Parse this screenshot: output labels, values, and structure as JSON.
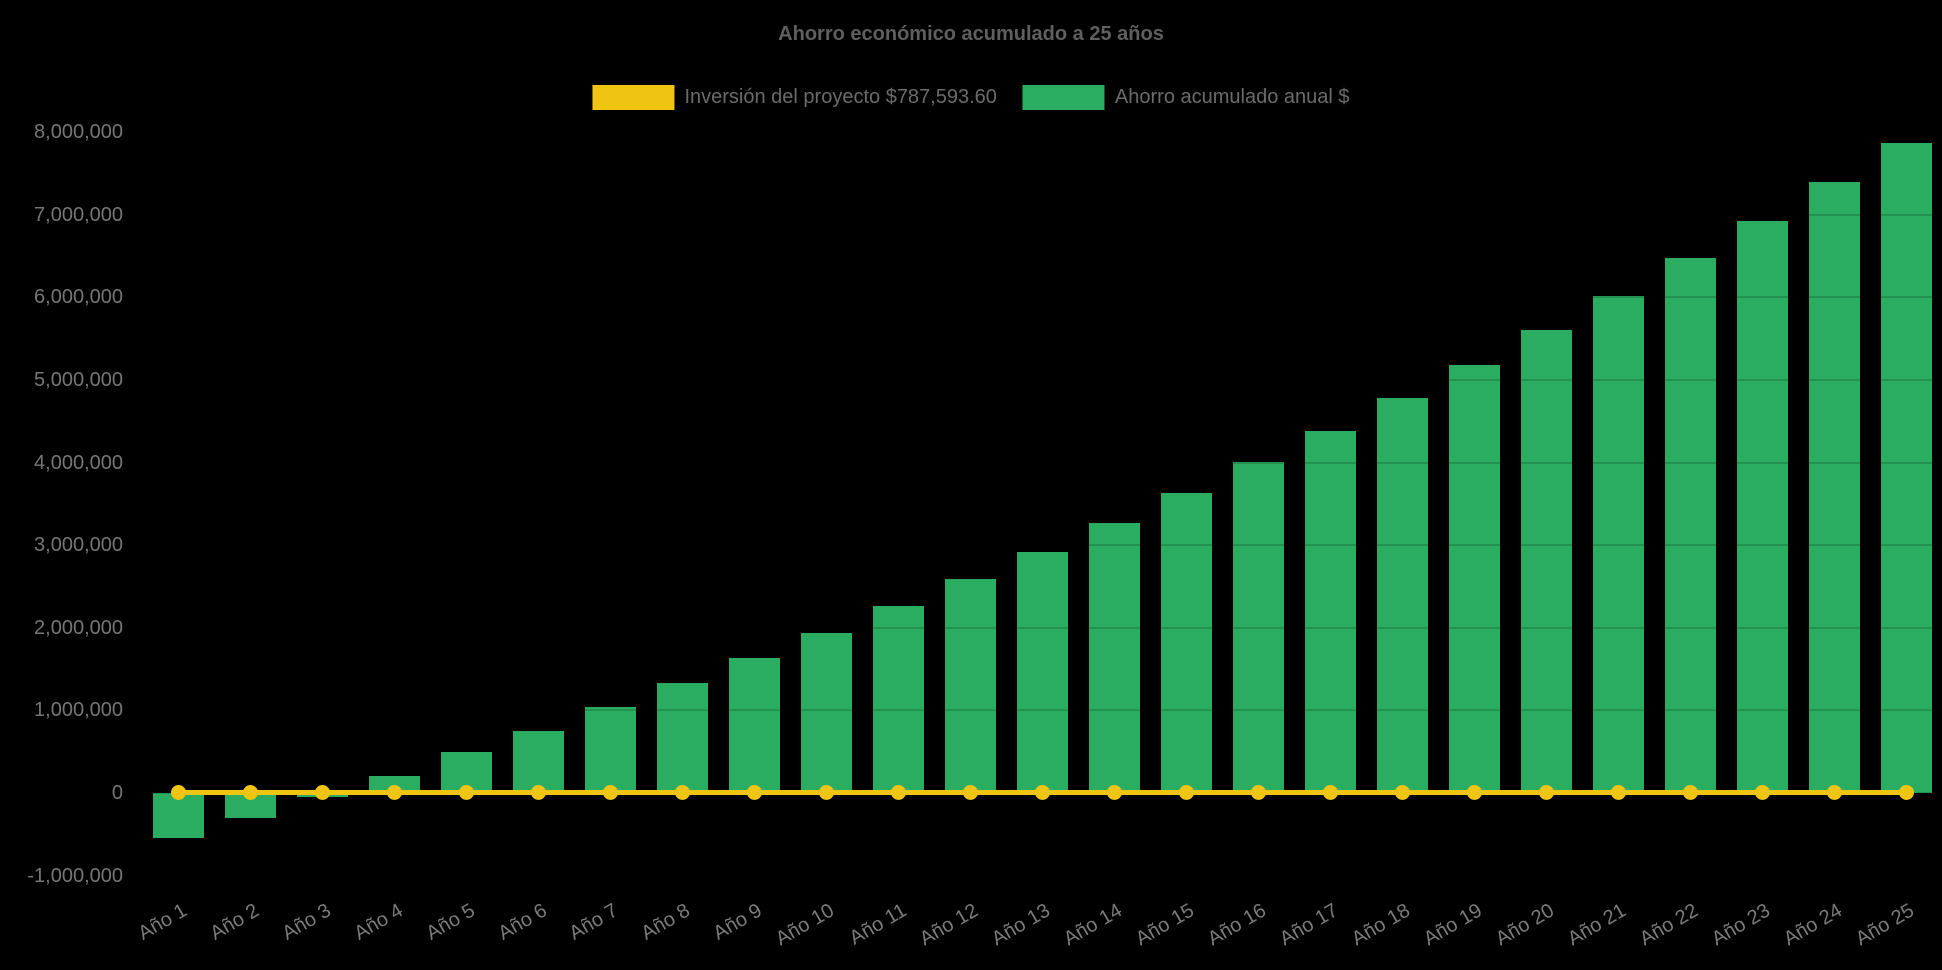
{
  "legend": {
    "items": [
      {
        "label": "Inversión del proyecto $787,593.60",
        "color": "#F0C512"
      },
      {
        "label": "Ahorro acumulado anual $",
        "color": "#2AAD60"
      }
    ]
  },
  "chart_data": {
    "type": "bar",
    "title": "Ahorro económico acumulado a 25 años",
    "background": "#000000",
    "text_colors": {
      "title": "#5f5f5f",
      "legend": "#6b6b6b",
      "yticks": "#767676",
      "xticks": "#7b7b7b"
    },
    "categories": [
      "Año 1",
      "Año 2",
      "Año 3",
      "Año 4",
      "Año 5",
      "Año 6",
      "Año 7",
      "Año 8",
      "Año 9",
      "Año 10",
      "Año 11",
      "Año 12",
      "Año 13",
      "Año 14",
      "Año 15",
      "Año 16",
      "Año 17",
      "Año 18",
      "Año 19",
      "Año 20",
      "Año 21",
      "Año 22",
      "Año 23",
      "Año 24",
      "Año 25"
    ],
    "series": [
      {
        "name": "Ahorro acumulado anual $",
        "type": "bar",
        "color": "#2AAD60",
        "values": [
          -550000,
          -300000,
          -45000,
          210000,
          490000,
          750000,
          1040000,
          1330000,
          1630000,
          1940000,
          2260000,
          2590000,
          2920000,
          3270000,
          3630000,
          4010000,
          4380000,
          4780000,
          5180000,
          5610000,
          6020000,
          6470000,
          6920000,
          7400000,
          7870000
        ]
      },
      {
        "name": "Inversión del proyecto $787,593.60",
        "type": "line",
        "color": "#F0C512",
        "marker": "circle",
        "note": "flat line with a round marker at every year, drawn at y ≈ 0 on the value axis",
        "values": [
          0,
          0,
          0,
          0,
          0,
          0,
          0,
          0,
          0,
          0,
          0,
          0,
          0,
          0,
          0,
          0,
          0,
          0,
          0,
          0,
          0,
          0,
          0,
          0,
          0
        ]
      }
    ],
    "xlabel": "",
    "ylabel": "",
    "ylim": [
      -1000000,
      8000000
    ],
    "yticks": [
      8000000,
      7000000,
      6000000,
      5000000,
      4000000,
      3000000,
      2000000,
      1000000,
      0,
      -1000000
    ],
    "yticklabels": [
      "8,000,000",
      "7,000,000",
      "6,000,000",
      "5,000,000",
      "4,000,000",
      "3,000,000",
      "2,000,000",
      "1,000,000",
      "0",
      "-1,000,000"
    ],
    "xtick_rotation_deg": -30,
    "legend_position": "top",
    "grid": "horizontal gridlines only faintly visible where they cross the bars"
  }
}
